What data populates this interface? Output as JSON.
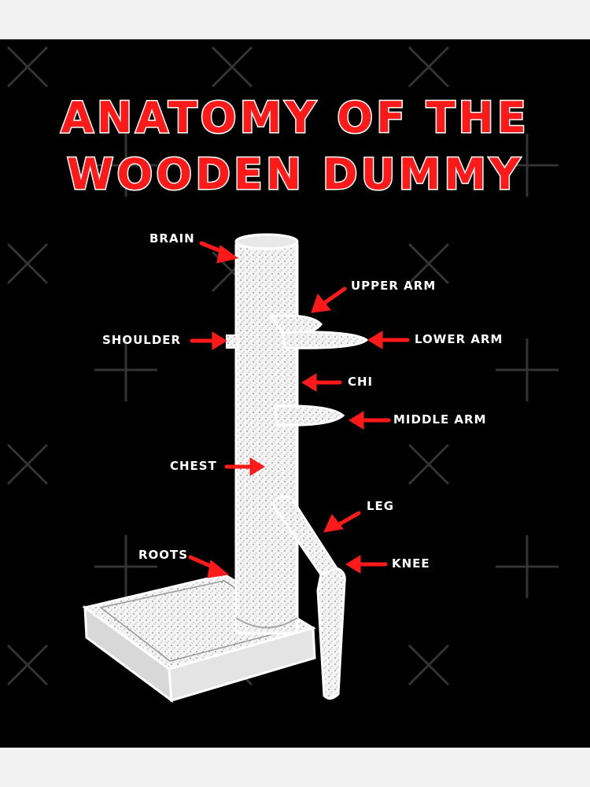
{
  "title": {
    "line1": "ANATOMY OF THE",
    "line2": "WOODEN DUMMY"
  },
  "labels": {
    "brain": "BRAIN",
    "upper_arm": "UPPER ARM",
    "shoulder": "SHOULDER",
    "lower_arm": "LOWER ARM",
    "chi": "CHI",
    "middle_arm": "MIDDLE ARM",
    "chest": "CHEST",
    "leg": "LEG",
    "roots": "ROOTS",
    "knee": "KNEE"
  },
  "colors": {
    "background": "#000000",
    "title_fill": "#ff1a1a",
    "title_outline": "#ffffff",
    "arrow": "#ff1a1a",
    "label_text": "#ffffff",
    "page": "#f2f2f2"
  }
}
